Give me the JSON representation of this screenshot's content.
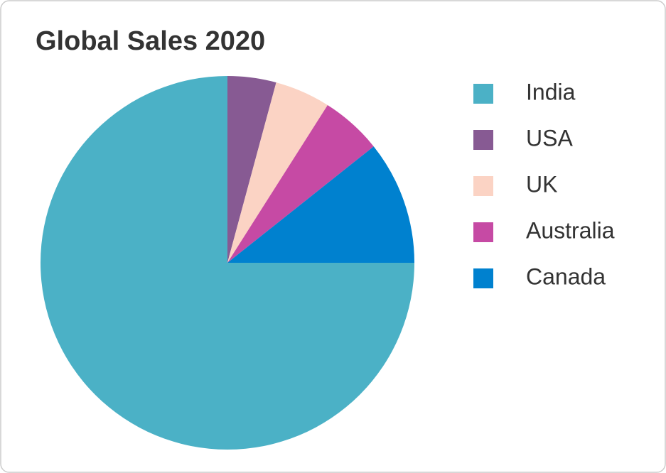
{
  "chart_data": {
    "type": "pie",
    "title": "Global Sales 2020",
    "categories": [
      "India",
      "USA",
      "UK",
      "Australia",
      "Canada"
    ],
    "values": [
      75,
      4.2,
      4.8,
      5.3,
      10.7
    ],
    "colors": [
      "#4bb1c6",
      "#875a93",
      "#fbd3c4",
      "#c64aa4",
      "#0081cf"
    ],
    "legend": "right"
  }
}
